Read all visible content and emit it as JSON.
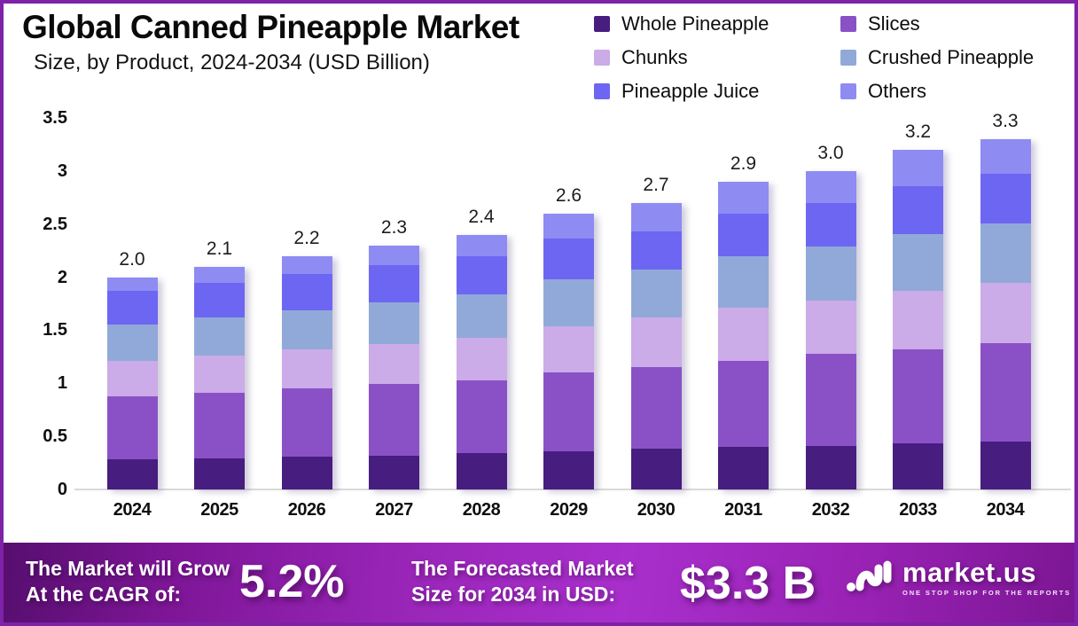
{
  "chart_data": {
    "type": "bar",
    "stacked": true,
    "title": "Global Canned Pineapple Market",
    "subtitle": "Size, by Product, 2024-2034 (USD Billion)",
    "xlabel": "",
    "ylabel": "",
    "ylim": [
      0,
      3.5
    ],
    "yticks": [
      0,
      0.5,
      1,
      1.5,
      2,
      2.5,
      3,
      3.5
    ],
    "ytick_labels": [
      "0",
      "0.5",
      "1",
      "1.5",
      "2",
      "2.5",
      "3",
      "3.5"
    ],
    "grid": false,
    "legend_position": "top-right",
    "categories": [
      "2024",
      "2025",
      "2026",
      "2027",
      "2028",
      "2029",
      "2030",
      "2031",
      "2032",
      "2033",
      "2034"
    ],
    "totals_labels": [
      "2.0",
      "2.1",
      "2.2",
      "2.3",
      "2.4",
      "2.6",
      "2.7",
      "2.9",
      "3.0",
      "3.2",
      "3.3"
    ],
    "series": [
      {
        "name": "Whole Pineapple",
        "color": "#471d7f",
        "values": [
          0.28,
          0.29,
          0.31,
          0.32,
          0.34,
          0.36,
          0.38,
          0.4,
          0.41,
          0.43,
          0.45
        ]
      },
      {
        "name": "Slices",
        "color": "#8a51c6",
        "values": [
          0.6,
          0.62,
          0.64,
          0.67,
          0.69,
          0.74,
          0.77,
          0.81,
          0.87,
          0.89,
          0.93
        ]
      },
      {
        "name": "Chunks",
        "color": "#cbabe8",
        "values": [
          0.33,
          0.35,
          0.37,
          0.38,
          0.4,
          0.44,
          0.47,
          0.5,
          0.5,
          0.55,
          0.57
        ]
      },
      {
        "name": "Crushed Pineapple",
        "color": "#91a9d9",
        "values": [
          0.34,
          0.36,
          0.37,
          0.39,
          0.41,
          0.44,
          0.45,
          0.49,
          0.51,
          0.54,
          0.56
        ]
      },
      {
        "name": "Pineapple Juice",
        "color": "#6d66f2",
        "values": [
          0.32,
          0.33,
          0.34,
          0.35,
          0.36,
          0.38,
          0.36,
          0.4,
          0.41,
          0.45,
          0.46
        ]
      },
      {
        "name": "Others",
        "color": "#8e8bf3",
        "values": [
          0.13,
          0.15,
          0.17,
          0.19,
          0.2,
          0.24,
          0.27,
          0.3,
          0.3,
          0.34,
          0.33
        ]
      }
    ]
  },
  "footer": {
    "cagr_line1": "The Market will Grow",
    "cagr_line2": "At the CAGR of:",
    "cagr_value": "5.2%",
    "forecast_line1": "The Forecasted Market",
    "forecast_line2": "Size for 2034 in USD:",
    "forecast_value": "$3.3 B",
    "brand_name": "market.us",
    "brand_tagline": "ONE STOP SHOP FOR THE REPORTS"
  },
  "colors": {
    "frame_border": "#7e22a8",
    "axis_line": "#d9d9d9",
    "footer_gradient_start": "#560e6e",
    "footer_gradient_mid": "#a92fcc",
    "footer_gradient_end": "#7c1694"
  }
}
